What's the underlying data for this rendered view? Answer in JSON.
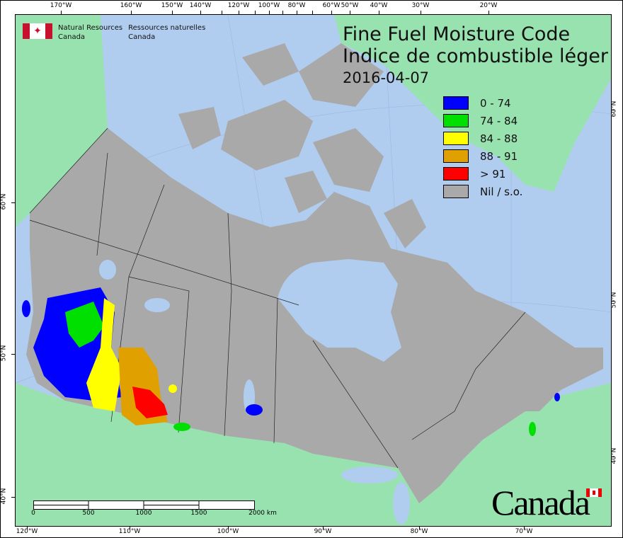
{
  "header": {
    "org_en_line1": "Natural Resources",
    "org_en_line2": "Canada",
    "org_fr_line1": "Ressources naturelles",
    "org_fr_line2": "Canada",
    "title_en": "Fine Fuel Moisture Code",
    "title_fr": "Indice de combustible léger",
    "date": "2016-04-07"
  },
  "legend": [
    {
      "label": "0 - 74",
      "color": "#0000ff"
    },
    {
      "label": "74 - 84",
      "color": "#00e000"
    },
    {
      "label": "84 - 88",
      "color": "#ffff00"
    },
    {
      "label": "88 - 91",
      "color": "#e0a000"
    },
    {
      "label": "> 91",
      "color": "#ff0000"
    },
    {
      "label": "Nil / s.o.",
      "color": "#a9a9a9"
    }
  ],
  "axes": {
    "top": [
      "170°W",
      "160°W",
      "150°W",
      "140°W",
      "120°W",
      "100°W",
      "80°W",
      "60°W",
      "50°W",
      "40°W",
      "30°W",
      "20°W"
    ],
    "bottom": [
      "120°W",
      "110°W",
      "100°W",
      "90°W",
      "80°W",
      "70°W"
    ],
    "left": [
      "60°N",
      "50°N",
      "40°N"
    ],
    "right": [
      "60°N",
      "50°N",
      "40°N"
    ]
  },
  "scale": {
    "labels": [
      "0",
      "500",
      "1000",
      "1500",
      "2000 km"
    ]
  },
  "wordmark": "Canada",
  "colors": {
    "ocean": "#b0cdf0",
    "land": "#98e2b0",
    "canada": "#a9a9a9"
  }
}
